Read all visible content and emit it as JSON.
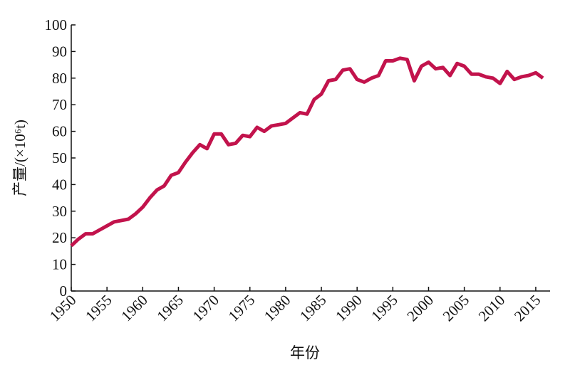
{
  "chart_data": {
    "type": "line",
    "x_label": "年份",
    "y_label": "产量/(×10⁶t)",
    "x": [
      1950,
      1951,
      1952,
      1953,
      1954,
      1955,
      1956,
      1957,
      1958,
      1959,
      1960,
      1961,
      1962,
      1963,
      1964,
      1965,
      1966,
      1967,
      1968,
      1969,
      1970,
      1971,
      1972,
      1973,
      1974,
      1975,
      1976,
      1977,
      1978,
      1979,
      1980,
      1981,
      1982,
      1983,
      1984,
      1985,
      1986,
      1987,
      1988,
      1989,
      1990,
      1991,
      1992,
      1993,
      1994,
      1995,
      1996,
      1997,
      1998,
      1999,
      2000,
      2001,
      2002,
      2003,
      2004,
      2005,
      2006,
      2007,
      2008,
      2009,
      2010,
      2011,
      2012,
      2013,
      2014,
      2015,
      2016
    ],
    "series": [
      {
        "name": "产量",
        "color": "#c2134c",
        "values": [
          17,
          19.5,
          21.5,
          21.5,
          23,
          24.5,
          26,
          26.5,
          27,
          29,
          31.5,
          35,
          38,
          39.5,
          43.5,
          44.5,
          48.5,
          52,
          55,
          53.5,
          59,
          59,
          55,
          55.5,
          58.5,
          58,
          61.5,
          60,
          62,
          62.5,
          63,
          65,
          67,
          66.5,
          72,
          74,
          79,
          79.5,
          83,
          83.5,
          79.5,
          78.5,
          80,
          81,
          86.5,
          86.5,
          87.5,
          87,
          79,
          84.5,
          86,
          83.5,
          84,
          81,
          85.5,
          84.5,
          81.5,
          81.5,
          80.5,
          80,
          78,
          82.5,
          79.5,
          80.5,
          81,
          82,
          80
        ]
      }
    ],
    "xlim": [
      1950,
      2017
    ],
    "xticks": [
      1950,
      1955,
      1960,
      1965,
      1970,
      1975,
      1980,
      1985,
      1990,
      1995,
      2000,
      2005,
      2010,
      2015
    ],
    "ylim": [
      0,
      100
    ],
    "yticks": [
      0,
      10,
      20,
      30,
      40,
      50,
      60,
      70,
      80,
      90,
      100
    ]
  }
}
